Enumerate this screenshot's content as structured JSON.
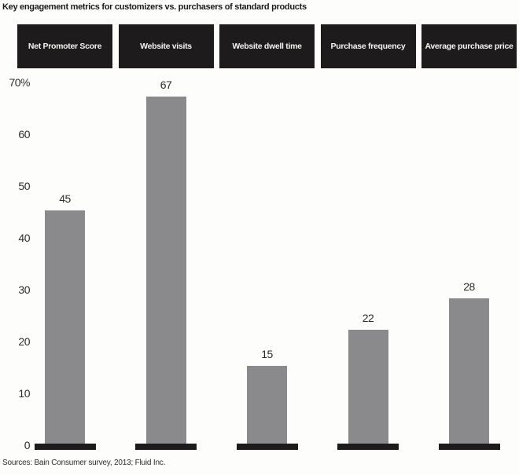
{
  "page": {
    "title": "Key engagement metrics for customizers vs. purchasers of standard products",
    "source": "Sources: Bain Consumer survey, 2013; Fluid Inc."
  },
  "colors": {
    "bar_fill": "#8a8a8c",
    "header_box": "#1d1b1c",
    "header_text": "#f5f4f2",
    "axis_text": "#2e2d2e",
    "background": "#fdfdfc"
  },
  "chart_data": {
    "type": "bar",
    "title": "Key engagement metrics for customizers vs. purchasers of standard products",
    "categories": [
      "Net Promoter Score",
      "Website visits",
      "Website dwell time",
      "Purchase frequency",
      "Average purchase price"
    ],
    "values": [
      45,
      67,
      15,
      22,
      28
    ],
    "value_labels": [
      "45",
      "67",
      "15",
      "22",
      "28"
    ],
    "unit": "%",
    "xlabel": "",
    "ylabel": "",
    "ylim": [
      0,
      70
    ],
    "yticks": [
      {
        "value": 70,
        "label": "70%"
      },
      {
        "value": 60,
        "label": "60"
      },
      {
        "value": 50,
        "label": "50"
      },
      {
        "value": 40,
        "label": "40"
      },
      {
        "value": 30,
        "label": "30"
      },
      {
        "value": 20,
        "label": "20"
      },
      {
        "value": 10,
        "label": "10"
      },
      {
        "value": 0,
        "label": "0"
      }
    ],
    "grid": false,
    "legend": null,
    "bar_color": "#8a8a8c",
    "baseline_style": "black segment under each bar",
    "source": "Sources: Bain Consumer survey, 2013; Fluid Inc."
  }
}
